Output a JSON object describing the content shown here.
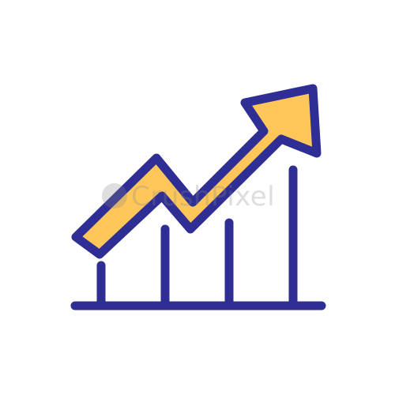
{
  "icon": {
    "name": "growth-chart-arrow-icon",
    "colors": {
      "outline": "#2E2E94",
      "arrow_fill": "#FFC65A",
      "background": "#FFFFFF",
      "watermark": "#8A8A8A"
    }
  },
  "watermark": {
    "text": "CrushPixel"
  }
}
